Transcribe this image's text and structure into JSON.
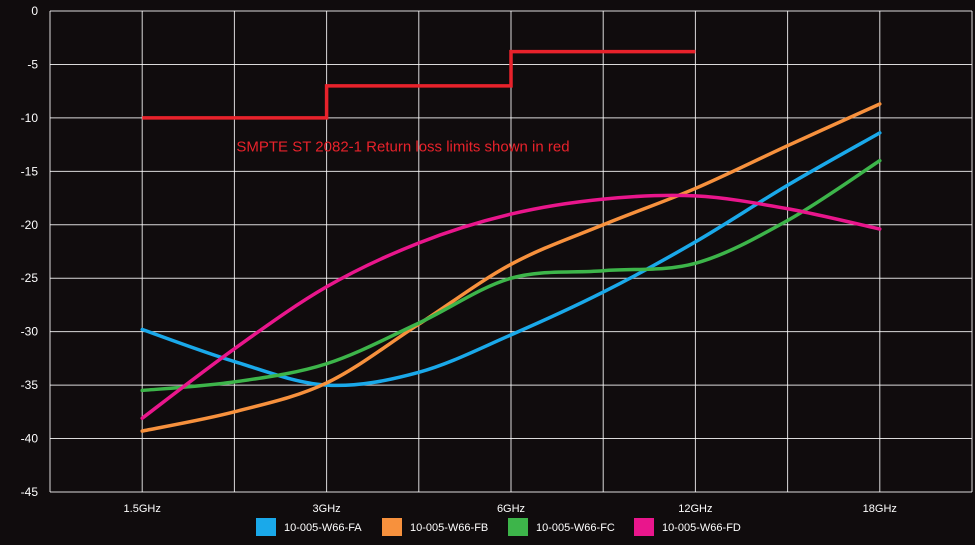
{
  "chart_data": {
    "type": "line",
    "title": "",
    "xlabel": "",
    "ylabel": "",
    "categories": [
      "1.5GHz",
      "",
      "3GHz",
      "",
      "6GHz",
      "",
      "12GHz",
      "",
      "18GHz"
    ],
    "x_tick_labels": [
      "1.5GHz",
      "3GHz",
      "6GHz",
      "12GHz",
      "18GHz"
    ],
    "ylim": [
      -45,
      0
    ],
    "y_ticks": [
      0,
      -5,
      -10,
      -15,
      -20,
      -25,
      -30,
      -35,
      -40,
      -45
    ],
    "grid": true,
    "legend_position": "bottom-center",
    "series": [
      {
        "name": "10-005-W66-FA",
        "color": "#1aa9ea",
        "values": [
          -29.8,
          -32.8,
          -35.0,
          -33.8,
          -30.3,
          -26.3,
          -21.6,
          -16.3,
          -11.4
        ]
      },
      {
        "name": "10-005-W66-FB",
        "color": "#f7913d",
        "values": [
          -39.3,
          -37.5,
          -34.8,
          -29.3,
          -23.7,
          -20.0,
          -16.6,
          -12.6,
          -8.7
        ]
      },
      {
        "name": "10-005-W66-FC",
        "color": "#3db54a",
        "values": [
          -35.5,
          -34.7,
          -33.0,
          -29.2,
          -25.0,
          -24.3,
          -23.6,
          -19.6,
          -14.0
        ]
      },
      {
        "name": "10-005-W66-FD",
        "color": "#e9168c",
        "values": [
          -38.1,
          -31.6,
          -25.8,
          -21.7,
          -19.0,
          -17.6,
          -17.3,
          -18.5,
          -20.4
        ]
      }
    ],
    "limit_line": {
      "color": "#e8222b",
      "steps": [
        {
          "from": 0,
          "to": 2,
          "value": -10
        },
        {
          "from": 2,
          "to": 4,
          "value": -7
        },
        {
          "from": 4,
          "to": 6,
          "value": -3.8
        }
      ]
    },
    "annotation": {
      "text": "SMPTE ST 2082-1 Return loss limits shown in red",
      "x_index": 1.0,
      "y_value": -12.7
    }
  }
}
